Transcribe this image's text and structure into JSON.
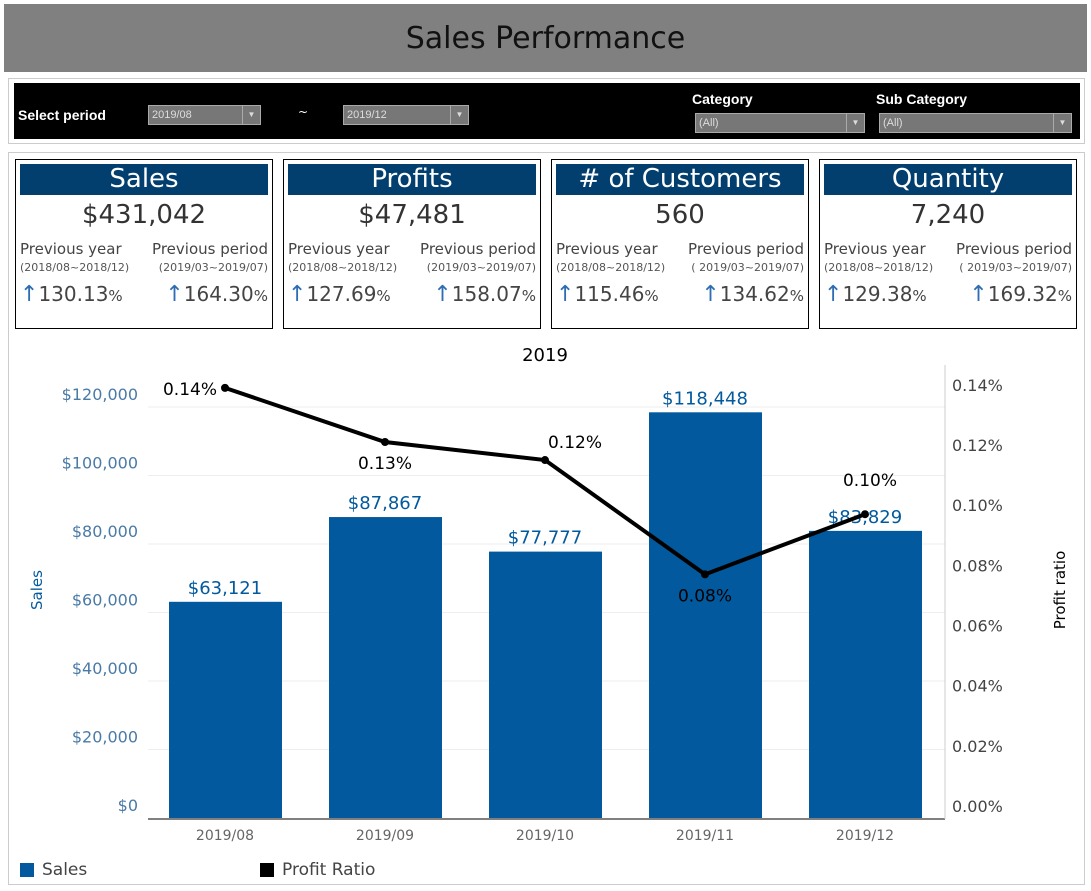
{
  "title": "Sales Performance",
  "filters": {
    "period_label": "Select period",
    "from": "2019/08",
    "separator": "~",
    "to": "2019/12",
    "category_label": "Category",
    "category_value": "(All)",
    "subcategory_label": "Sub Category",
    "subcategory_value": "(All)"
  },
  "cards": [
    {
      "title": "Sales",
      "value": "$431,042",
      "prev_year_label": "Previous year",
      "prev_year_range": "(2018/08~2018/12)",
      "prev_year_pct": "130.13",
      "prev_period_label": "Previous period",
      "prev_period_range": "(2019/03~2019/07)",
      "prev_period_pct": "164.30"
    },
    {
      "title": "Profits",
      "value": "$47,481",
      "prev_year_label": "Previous year",
      "prev_year_range": "(2018/08~2018/12)",
      "prev_year_pct": "127.69",
      "prev_period_label": "Previous period",
      "prev_period_range": "(2019/03~2019/07)",
      "prev_period_pct": "158.07"
    },
    {
      "title": "# of Customers",
      "value": "560",
      "prev_year_label": "Previous year",
      "prev_year_range": "(2018/08~2018/12)",
      "prev_year_pct": "115.46",
      "prev_period_label": "Previous period",
      "prev_period_range": "( 2019/03~2019/07)",
      "prev_period_pct": "134.62"
    },
    {
      "title": "Quantity",
      "value": "7,240",
      "prev_year_label": "Previous year",
      "prev_year_range": "(2018/08~2018/12)",
      "prev_year_pct": "129.38",
      "prev_period_label": "Previous period",
      "prev_period_range": "( 2019/03~2019/07)",
      "prev_period_pct": "169.32"
    }
  ],
  "pct_symbol": "%",
  "arrow_icon": "arrow-up-icon",
  "chart_data": {
    "type": "bar+line",
    "title": "2019",
    "categories": [
      "2019/08",
      "2019/09",
      "2019/10",
      "2019/11",
      "2019/12"
    ],
    "series": [
      {
        "name": "Sales",
        "type": "bar",
        "axis": "left",
        "values": [
          63121,
          87867,
          77777,
          118448,
          83829
        ],
        "labels": [
          "$63,121",
          "$87,867",
          "$77,777",
          "$118,448",
          "$83,829"
        ],
        "color": "#02599d"
      },
      {
        "name": "Profit Ratio",
        "type": "line",
        "axis": "right",
        "values": [
          0.143,
          0.125,
          0.119,
          0.081,
          0.101
        ],
        "labels": [
          "0.14%",
          "0.13%",
          "0.12%",
          "0.08%",
          "0.10%"
        ],
        "color": "#000000"
      }
    ],
    "ylabel": "Sales",
    "y2label": "Profit ratio",
    "yticks": [
      0,
      20000,
      40000,
      60000,
      80000,
      100000,
      120000
    ],
    "ytick_labels": [
      "$0",
      "$20,000",
      "$40,000",
      "$60,000",
      "$80,000",
      "$100,000",
      "$120,000"
    ],
    "y2ticks": [
      0,
      0.02,
      0.04,
      0.06,
      0.08,
      0.1,
      0.12,
      0.14
    ],
    "y2tick_labels": [
      "0.00%",
      "0.02%",
      "0.04%",
      "0.06%",
      "0.08%",
      "0.10%",
      "0.12%",
      "0.14%"
    ],
    "ylim": [
      0,
      132260
    ],
    "y2lim": [
      0,
      0.1506
    ],
    "legend": "bottom-left",
    "grid": true
  }
}
